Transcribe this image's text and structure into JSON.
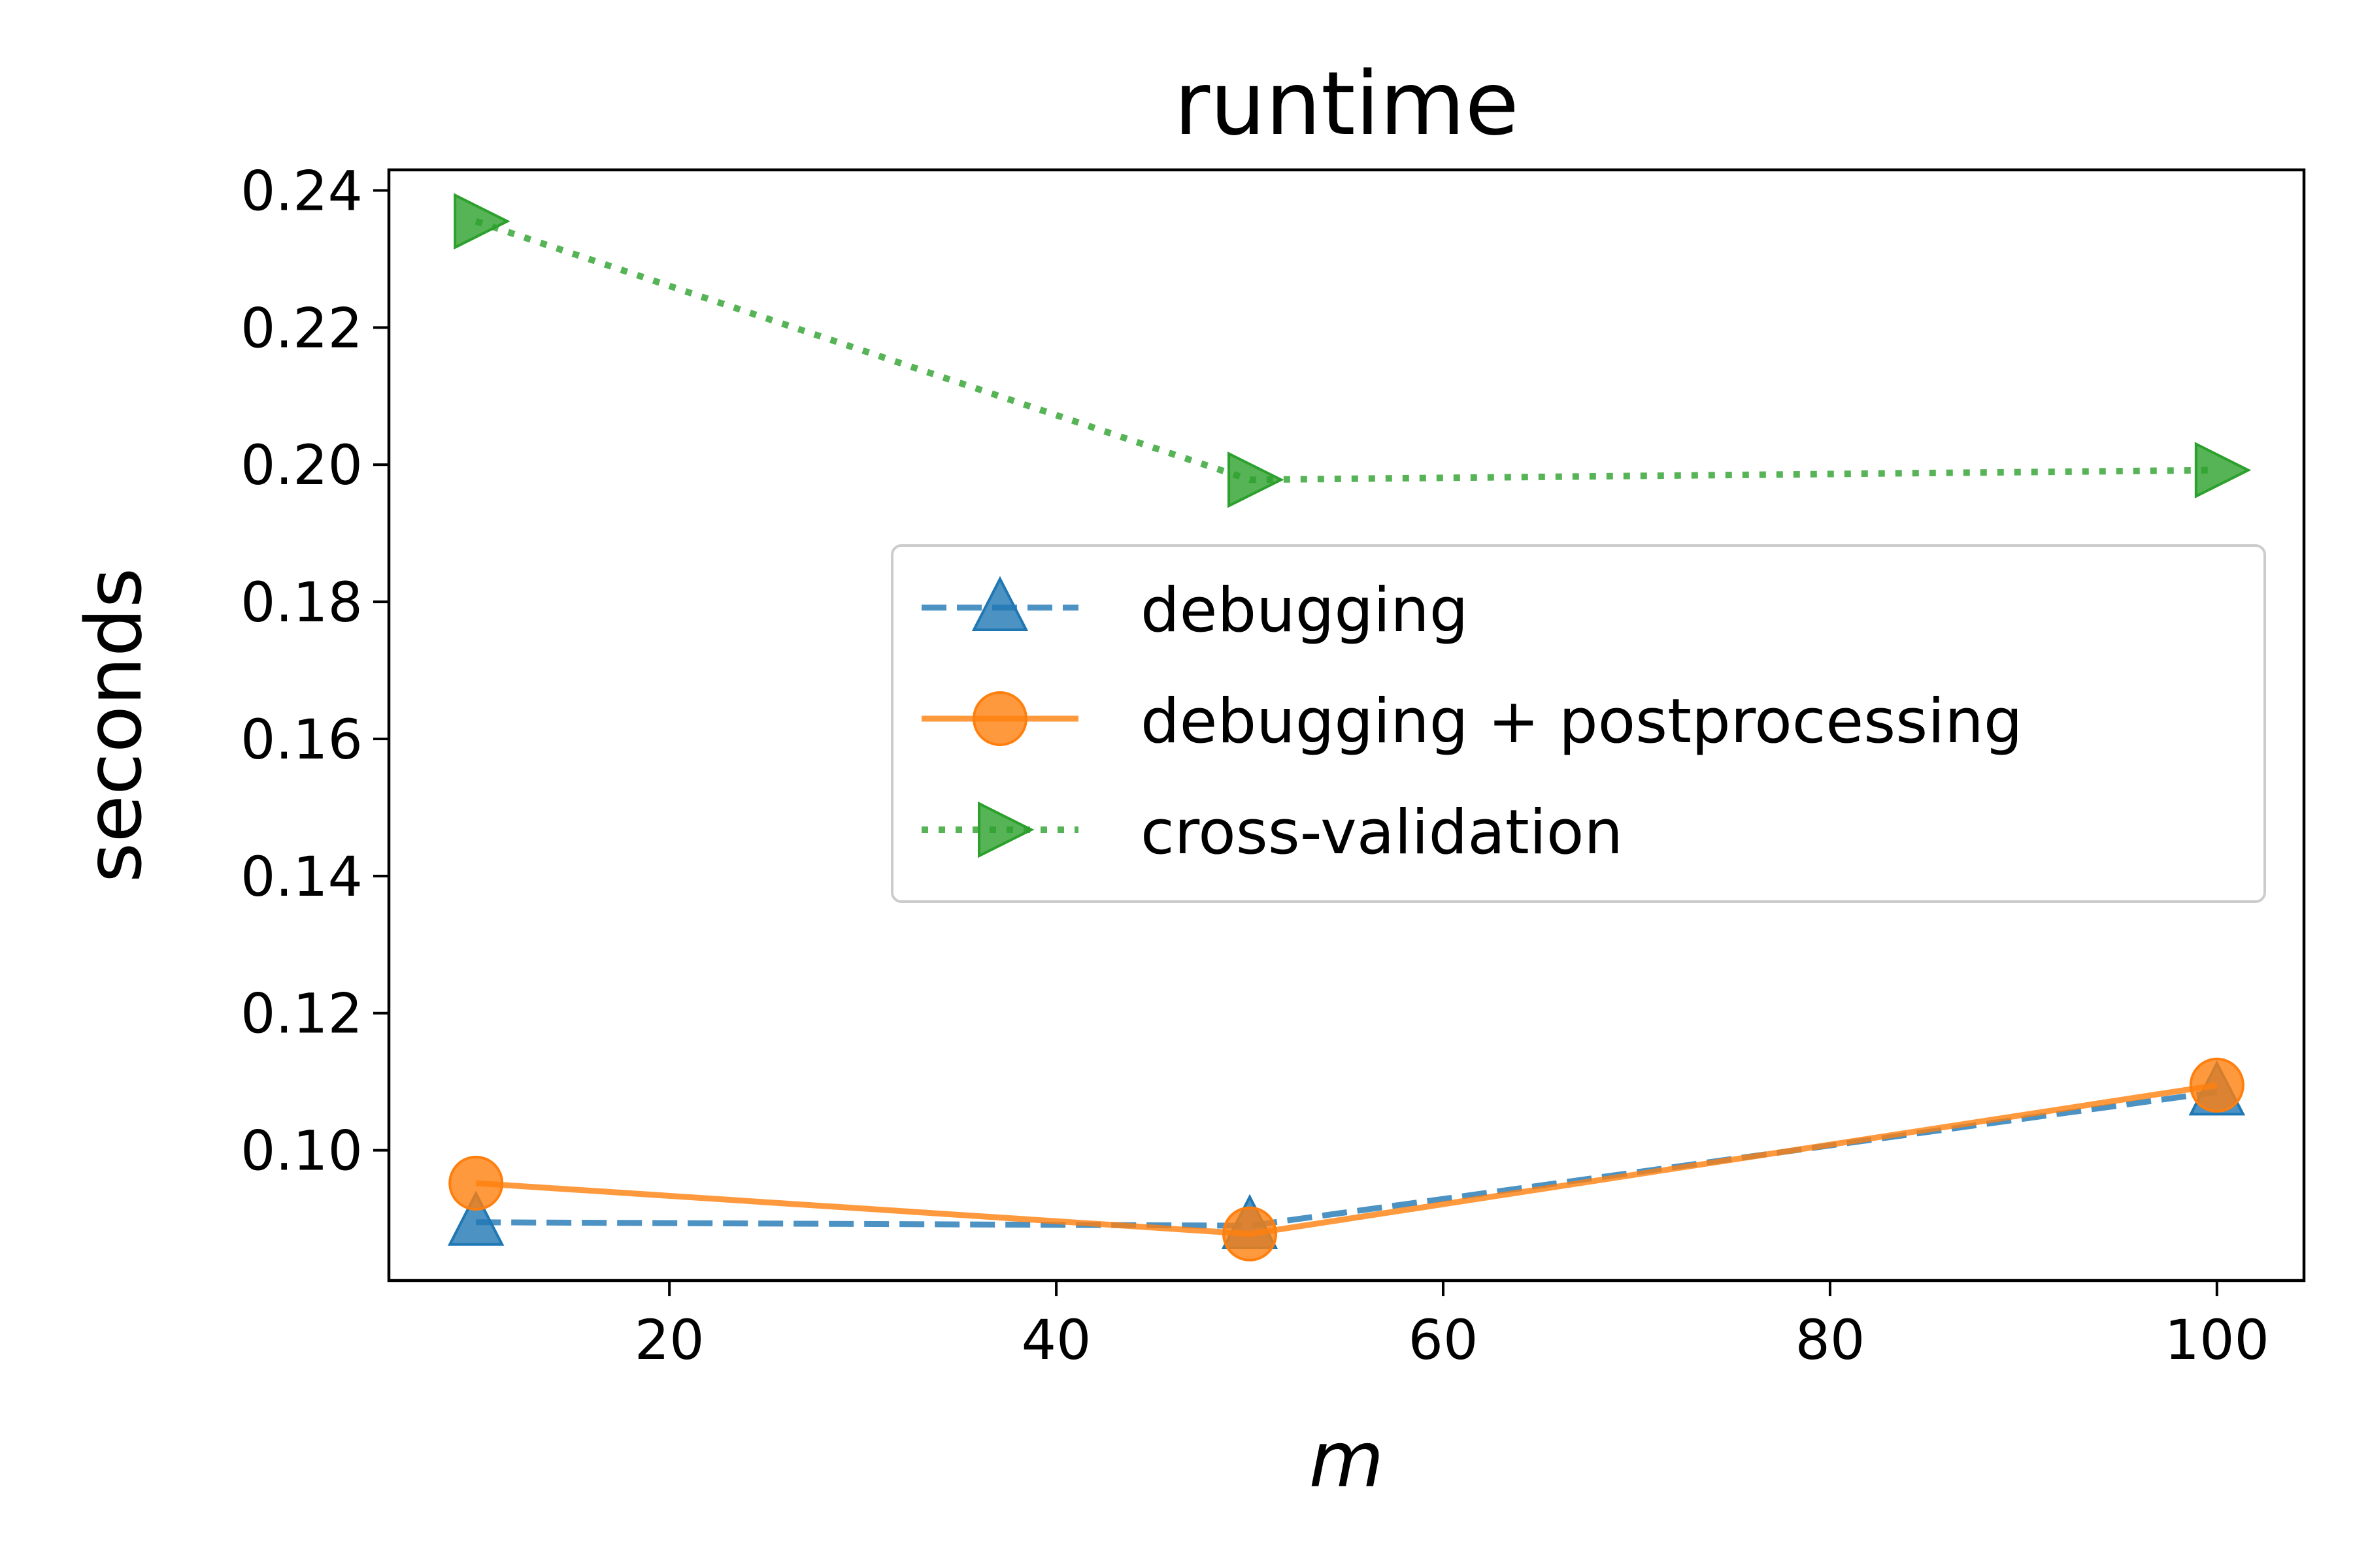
{
  "chart_data": {
    "type": "line",
    "title": "runtime",
    "xlabel": "m",
    "ylabel": "seconds",
    "xlim": [
      5.5,
      104.5
    ],
    "ylim": [
      0.081,
      0.243
    ],
    "x_ticks": [
      20,
      40,
      60,
      80,
      100
    ],
    "y_ticks": [
      0.1,
      0.12,
      0.14,
      0.16,
      0.18,
      0.2,
      0.22,
      0.24
    ],
    "x_tick_labels": [
      "20",
      "40",
      "60",
      "80",
      "100"
    ],
    "y_tick_labels": [
      "0.10",
      "0.12",
      "0.14",
      "0.16",
      "0.18",
      "0.20",
      "0.22",
      "0.24"
    ],
    "legend_position": "center-right",
    "grid": false,
    "series": [
      {
        "name": "debugging",
        "x": [
          10,
          50,
          100
        ],
        "y": [
          0.0895,
          0.089,
          0.1085
        ],
        "color": "#1f77b4",
        "line_style": "dashed",
        "marker": "triangle-up"
      },
      {
        "name": "debugging + postprocessing",
        "x": [
          10,
          50,
          100
        ],
        "y": [
          0.0952,
          0.0878,
          0.1095
        ],
        "color": "#ff7f0e",
        "line_style": "solid",
        "marker": "circle"
      },
      {
        "name": "cross-validation",
        "x": [
          10,
          50,
          100
        ],
        "y": [
          0.2355,
          0.1978,
          0.1992
        ],
        "color": "#2ca02c",
        "line_style": "dotted",
        "marker": "triangle-right"
      }
    ]
  }
}
